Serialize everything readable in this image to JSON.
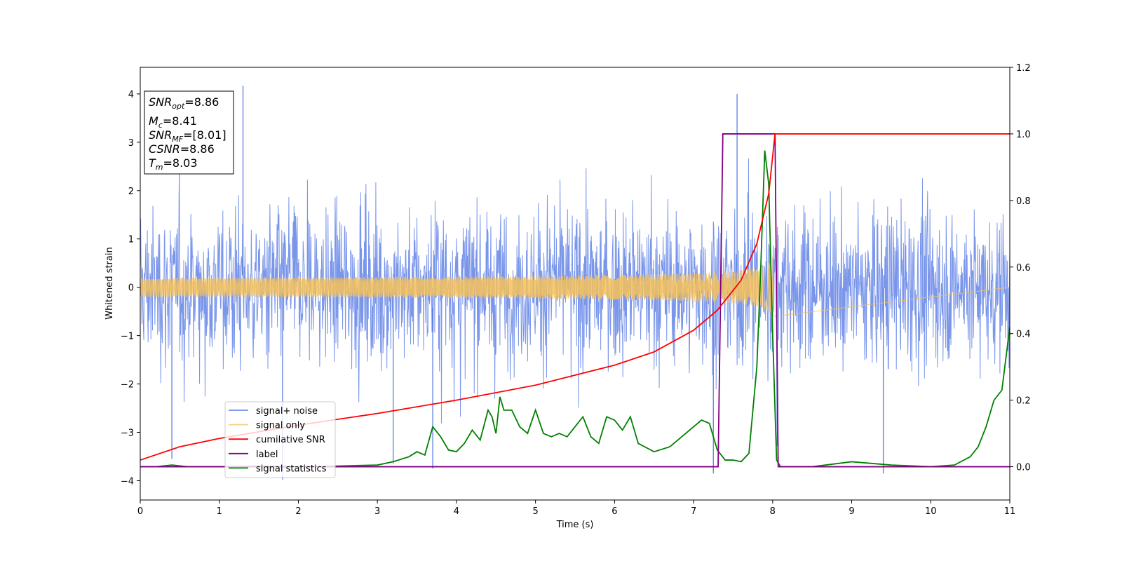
{
  "chart_data": {
    "type": "line",
    "xlabel": "Time (s)",
    "ylabel": "Whitened strain",
    "xlim": [
      0,
      11
    ],
    "ylim_left": [
      -4.4,
      4.55
    ],
    "ylim_right": [
      -0.1,
      1.2
    ],
    "x_ticks": [
      "0",
      "1",
      "2",
      "3",
      "4",
      "5",
      "6",
      "7",
      "8",
      "9",
      "10",
      "11"
    ],
    "y_ticks_left": [
      "−4",
      "−3",
      "−2",
      "−1",
      "0",
      "1",
      "2",
      "3",
      "4"
    ],
    "y_ticks_right": [
      "0.0",
      "0.2",
      "0.4",
      "0.6",
      "0.8",
      "1.0",
      "1.2"
    ],
    "annotation": {
      "snr_opt": {
        "base": "SNR",
        "sub": "opt",
        "value": "=8.86"
      },
      "mc": {
        "base": "M",
        "sub": "c",
        "value": "=8.41"
      },
      "snr_mf": {
        "base": "SNR",
        "sub": "MF",
        "value": "=[8.01]"
      },
      "csnr": {
        "base": "CSNR",
        "value": "=8.86"
      },
      "tm": {
        "base": "T",
        "sub": "m",
        "value": "=8.03"
      }
    },
    "series": [
      {
        "name": "signal+ noise",
        "color": "#4169e1",
        "axis": "left",
        "description_points": "noise band roughly ±2.5 with spikes up to 4.17 and down to −4.0",
        "spikes": [
          [
            1.3,
            4.17
          ],
          [
            1.8,
            -3.98
          ],
          [
            3.2,
            -3.65
          ],
          [
            3.7,
            -3.75
          ],
          [
            7.55,
            4.0
          ],
          [
            7.25,
            -3.85
          ],
          [
            9.4,
            -3.85
          ],
          [
            0.4,
            -3.55
          ]
        ]
      },
      {
        "name": "signal only",
        "color": "#f4c15a",
        "axis": "left",
        "chirp_start_t": 0,
        "chirp_end_t": 8.03,
        "amplitude_start": 0.05,
        "amplitude_end": 0.7
      },
      {
        "name": "cumilative SNR",
        "color": "#ff0000",
        "axis": "right",
        "points": [
          [
            0,
            0.02
          ],
          [
            0.5,
            0.06
          ],
          [
            1,
            0.085
          ],
          [
            2,
            0.125
          ],
          [
            3,
            0.16
          ],
          [
            4,
            0.2
          ],
          [
            5,
            0.245
          ],
          [
            6,
            0.305
          ],
          [
            6.5,
            0.345
          ],
          [
            7,
            0.41
          ],
          [
            7.3,
            0.47
          ],
          [
            7.6,
            0.56
          ],
          [
            7.8,
            0.67
          ],
          [
            7.95,
            0.82
          ],
          [
            8.03,
            1.0
          ],
          [
            11,
            1.0
          ]
        ]
      },
      {
        "name": "label",
        "color": "#800080",
        "axis": "right",
        "points": [
          [
            0,
            0.0
          ],
          [
            7.31,
            0.0
          ],
          [
            7.37,
            1.0
          ],
          [
            8.03,
            1.0
          ],
          [
            8.07,
            0.0
          ],
          [
            11,
            0.0
          ]
        ]
      },
      {
        "name": "signal statistics",
        "color": "#008000",
        "axis": "right",
        "points": [
          [
            0,
            0.0
          ],
          [
            0.2,
            0.0
          ],
          [
            0.4,
            0.005
          ],
          [
            0.6,
            0.0
          ],
          [
            1,
            0.0
          ],
          [
            1.5,
            0.002
          ],
          [
            2,
            0.0
          ],
          [
            2.5,
            0.002
          ],
          [
            3,
            0.005
          ],
          [
            3.2,
            0.015
          ],
          [
            3.4,
            0.03
          ],
          [
            3.5,
            0.045
          ],
          [
            3.6,
            0.035
          ],
          [
            3.7,
            0.12
          ],
          [
            3.8,
            0.09
          ],
          [
            3.9,
            0.05
          ],
          [
            4.0,
            0.045
          ],
          [
            4.1,
            0.07
          ],
          [
            4.2,
            0.11
          ],
          [
            4.3,
            0.08
          ],
          [
            4.4,
            0.17
          ],
          [
            4.45,
            0.15
          ],
          [
            4.5,
            0.1
          ],
          [
            4.55,
            0.21
          ],
          [
            4.6,
            0.17
          ],
          [
            4.7,
            0.17
          ],
          [
            4.8,
            0.12
          ],
          [
            4.9,
            0.1
          ],
          [
            5.0,
            0.17
          ],
          [
            5.1,
            0.1
          ],
          [
            5.2,
            0.09
          ],
          [
            5.3,
            0.1
          ],
          [
            5.4,
            0.09
          ],
          [
            5.5,
            0.12
          ],
          [
            5.6,
            0.15
          ],
          [
            5.7,
            0.09
          ],
          [
            5.8,
            0.07
          ],
          [
            5.9,
            0.15
          ],
          [
            6.0,
            0.14
          ],
          [
            6.1,
            0.11
          ],
          [
            6.2,
            0.15
          ],
          [
            6.3,
            0.07
          ],
          [
            6.5,
            0.045
          ],
          [
            6.7,
            0.06
          ],
          [
            6.9,
            0.1
          ],
          [
            7.0,
            0.12
          ],
          [
            7.1,
            0.14
          ],
          [
            7.2,
            0.13
          ],
          [
            7.3,
            0.05
          ],
          [
            7.4,
            0.02
          ],
          [
            7.5,
            0.02
          ],
          [
            7.6,
            0.015
          ],
          [
            7.7,
            0.04
          ],
          [
            7.8,
            0.3
          ],
          [
            7.85,
            0.6
          ],
          [
            7.9,
            0.95
          ],
          [
            7.95,
            0.85
          ],
          [
            8.0,
            0.4
          ],
          [
            8.05,
            0.02
          ],
          [
            8.1,
            0.0
          ],
          [
            8.5,
            0.0
          ],
          [
            9.0,
            0.015
          ],
          [
            9.5,
            0.005
          ],
          [
            10.0,
            0.0
          ],
          [
            10.3,
            0.005
          ],
          [
            10.5,
            0.03
          ],
          [
            10.6,
            0.06
          ],
          [
            10.7,
            0.12
          ],
          [
            10.8,
            0.2
          ],
          [
            10.9,
            0.23
          ],
          [
            11.0,
            0.42
          ]
        ]
      }
    ],
    "legend_location": "lower-left"
  }
}
